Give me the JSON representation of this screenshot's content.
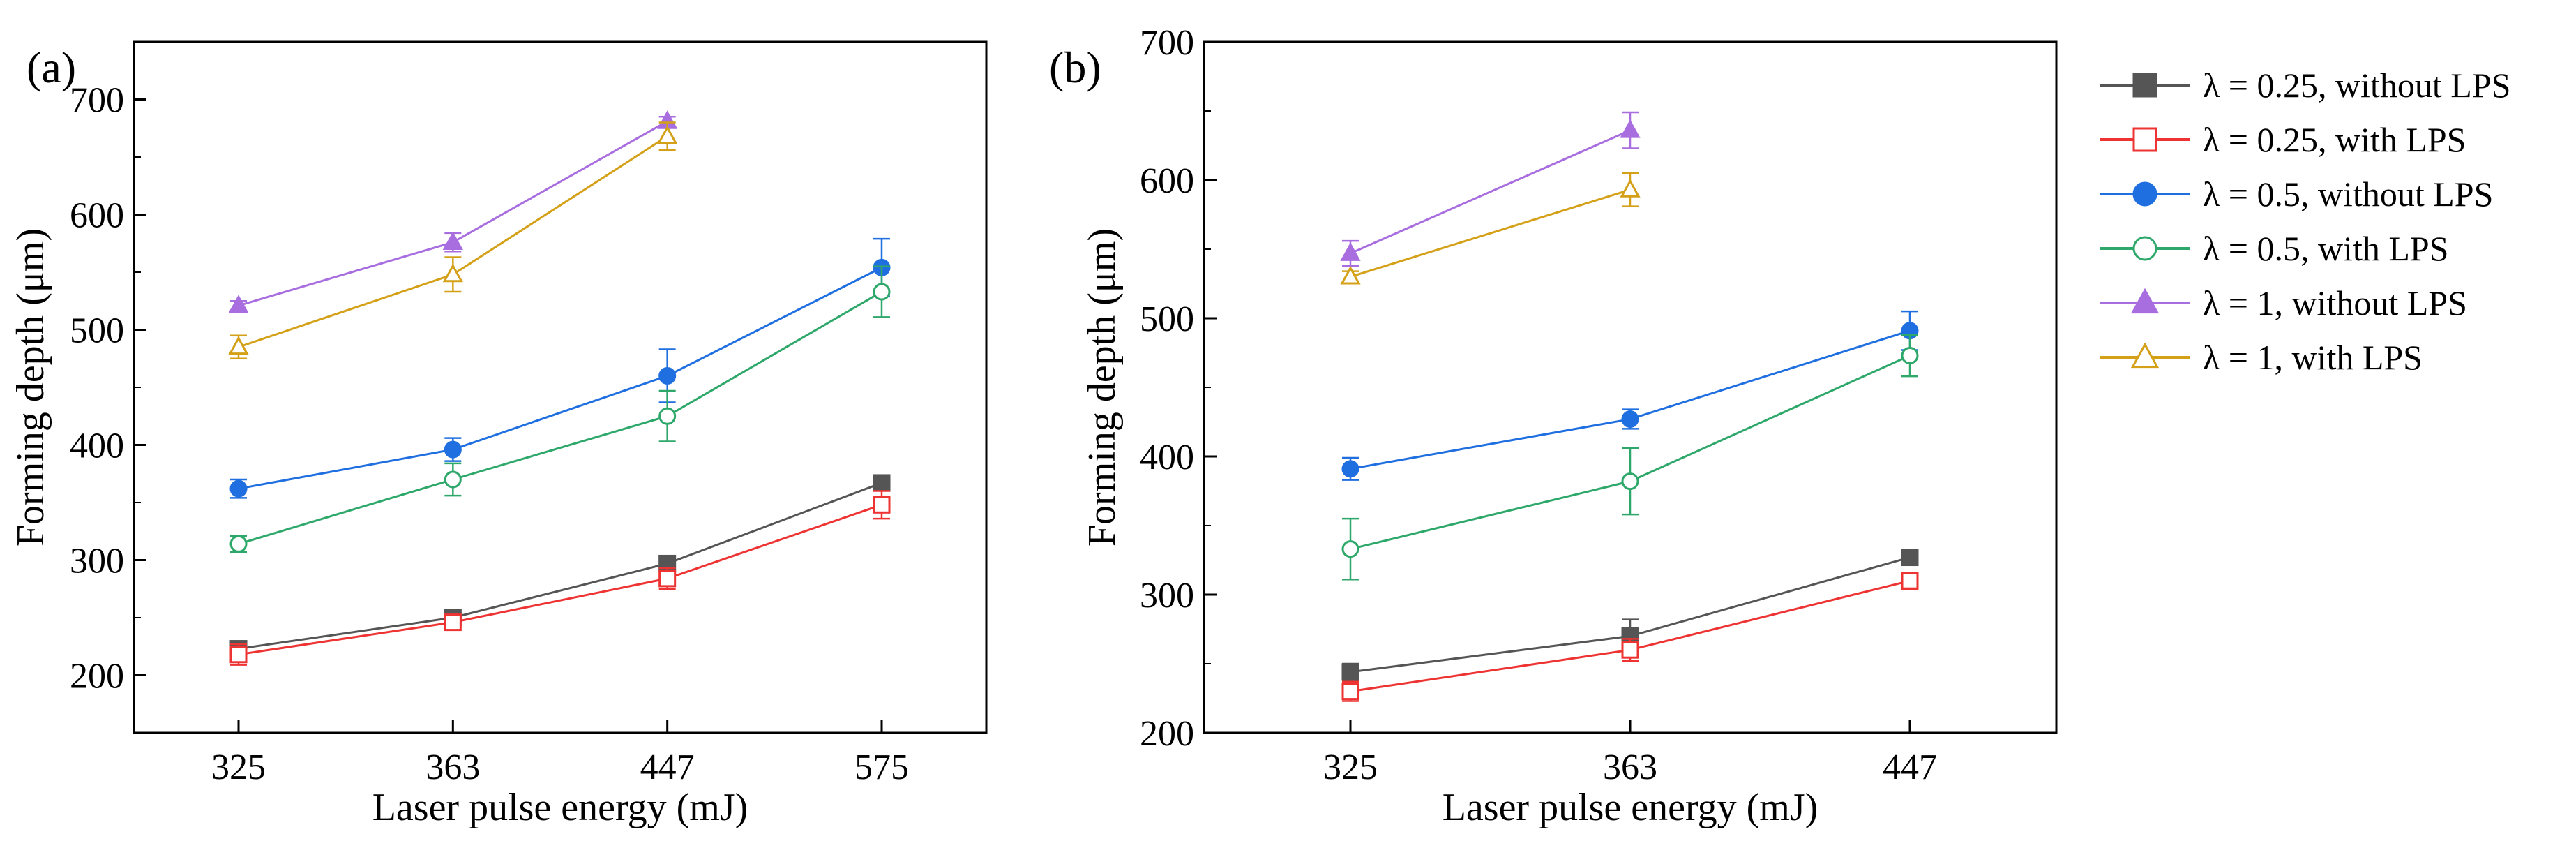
{
  "legend": [
    {
      "label": "λ = 0.25, without LPS",
      "color": "#555555",
      "marker": "square",
      "filled": true
    },
    {
      "label": "λ = 0.25, with LPS",
      "color": "#ee3333",
      "marker": "square",
      "filled": false
    },
    {
      "label": "λ = 0.5, without LPS",
      "color": "#1f6fe0",
      "marker": "circle",
      "filled": true
    },
    {
      "label": "λ = 0.5, with LPS",
      "color": "#2ea86a",
      "marker": "circle",
      "filled": false
    },
    {
      "label": "λ = 1, without LPS",
      "color": "#a86ee0",
      "marker": "triangle",
      "filled": true
    },
    {
      "label": "λ = 1, with LPS",
      "color": "#d4a017",
      "marker": "triangle",
      "filled": false
    }
  ],
  "chart_data": [
    {
      "type": "line",
      "panel_label": "(a)",
      "xlabel": "Laser pulse energy (mJ)",
      "ylabel": "Forming depth (μm)",
      "categories": [
        "325",
        "363",
        "447",
        "575"
      ],
      "ylim": [
        150,
        750
      ],
      "yticks": [
        200,
        300,
        400,
        500,
        600,
        700
      ],
      "series": [
        {
          "name": "λ = 0.25, without LPS",
          "values": [
            223,
            250,
            297,
            367
          ],
          "err": [
            5,
            4,
            6,
            4
          ]
        },
        {
          "name": "λ = 0.25, with LPS",
          "values": [
            218,
            246,
            284,
            348
          ],
          "err": [
            9,
            5,
            9,
            12
          ]
        },
        {
          "name": "λ = 0.5, without LPS",
          "values": [
            362,
            396,
            460,
            554
          ],
          "err": [
            8,
            10,
            23,
            25
          ]
        },
        {
          "name": "λ = 0.5, with LPS",
          "values": [
            314,
            370,
            425,
            533
          ],
          "err": [
            7,
            14,
            22,
            22
          ]
        },
        {
          "name": "λ = 1, without LPS",
          "values": [
            521,
            576,
            681,
            null
          ],
          "err": [
            4,
            8,
            4,
            null
          ]
        },
        {
          "name": "λ = 1, with LPS",
          "values": [
            485,
            548,
            668,
            null
          ],
          "err": [
            10,
            15,
            12,
            null
          ]
        }
      ]
    },
    {
      "type": "line",
      "panel_label": "(b)",
      "xlabel": "Laser pulse energy (mJ)",
      "ylabel": "Forming depth (μm)",
      "categories": [
        "325",
        "363",
        "447"
      ],
      "ylim": [
        200,
        700
      ],
      "yticks": [
        200,
        300,
        400,
        500,
        600,
        700
      ],
      "series": [
        {
          "name": "λ = 0.25, without LPS",
          "values": [
            244,
            270,
            327
          ],
          "err": [
            6,
            12,
            5
          ]
        },
        {
          "name": "λ = 0.25, with LPS",
          "values": [
            230,
            260,
            310
          ],
          "err": [
            7,
            8,
            6
          ]
        },
        {
          "name": "λ = 0.5, without LPS",
          "values": [
            391,
            427,
            491
          ],
          "err": [
            8,
            7,
            14
          ]
        },
        {
          "name": "λ = 0.5, with LPS",
          "values": [
            333,
            382,
            473
          ],
          "err": [
            22,
            24,
            15
          ]
        },
        {
          "name": "λ = 1, without LPS",
          "values": [
            547,
            636,
            null
          ],
          "err": [
            9,
            13,
            null
          ]
        },
        {
          "name": "λ = 1, with LPS",
          "values": [
            530,
            593,
            null
          ],
          "err": [
            4,
            12,
            null
          ]
        }
      ]
    }
  ]
}
